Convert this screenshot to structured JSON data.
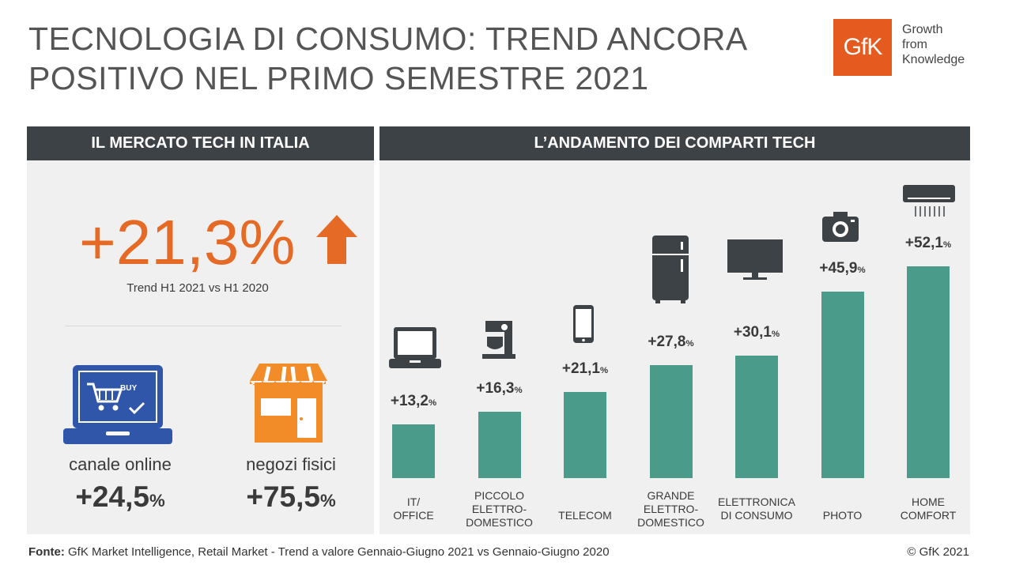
{
  "title": {
    "line1": "TECNOLOGIA DI CONSUMO: TREND ANCORA",
    "line2": "POSITIVO NEL PRIMO SEMESTRE 2021"
  },
  "logo": {
    "text": "GfK",
    "tagline": [
      "Growth",
      "from",
      "Knowledge"
    ],
    "color": "#e55a1f"
  },
  "left_panel": {
    "header": "IL MERCATO TECH IN ITALIA",
    "headline_value": "+21,3%",
    "headline_label": "Trend H1 2021 vs H1 2020",
    "channels": [
      {
        "label": "canale online",
        "value": "+24,5",
        "unit": "%",
        "icon": "laptop-buy-icon",
        "screen_text": "BUY"
      },
      {
        "label": "negozi fisici",
        "value": "+75,5",
        "unit": "%",
        "icon": "shop-icon"
      }
    ]
  },
  "right_panel": {
    "header": "L’ANDAMENTO DEI COMPARTI TECH"
  },
  "chart_data": {
    "type": "bar",
    "categories": [
      "IT/\nOFFICE",
      "PICCOLO\nELETTRO-\nDOMESTICO",
      "TELECOM",
      "GRANDE\nELETTRO-\nDOMESTICO",
      "ELETTRONICA\nDI CONSUMO",
      "PHOTO",
      "HOME\nCOMFORT"
    ],
    "values": [
      13.2,
      16.3,
      21.1,
      27.8,
      30.1,
      45.9,
      52.1
    ],
    "value_labels": [
      "+13,2",
      "+16,3",
      "+21,1",
      "+27,8",
      "+30,1",
      "+45,9",
      "+52,1"
    ],
    "unit": "%",
    "icons": [
      "laptop-icon",
      "mixer-icon",
      "smartphone-icon",
      "fridge-icon",
      "tv-icon",
      "camera-icon",
      "air-conditioner-icon"
    ],
    "bar_color": "#4a9b8a"
  },
  "colors": {
    "accent_orange": "#e56a25",
    "header_dark": "#3d4246",
    "panel_bg": "#f0f0f0",
    "icon_blue": "#2f56a8"
  },
  "footer": {
    "source_label": "Fonte:",
    "source_text": " GfK Market Intelligence, Retail Market - Trend a valore Gennaio-Giugno 2021 vs Gennaio-Giugno 2020",
    "copyright": "© GfK 2021"
  }
}
